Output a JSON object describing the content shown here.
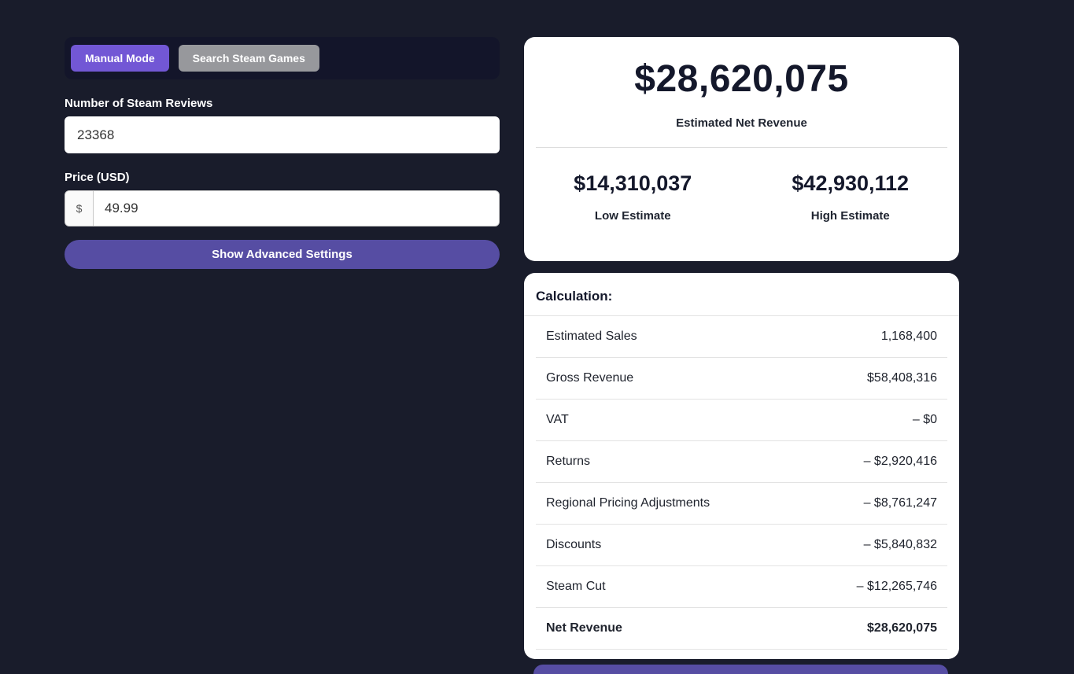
{
  "colors": {
    "background": "#191c2b",
    "accent_purple": "#7257d5",
    "accent_purple_dark": "#564da3",
    "inactive_gray": "#97989c",
    "card": "#ffffff"
  },
  "mode_toggle": {
    "manual_label": "Manual Mode",
    "search_label": "Search Steam Games"
  },
  "form": {
    "reviews_label": "Number of Steam Reviews",
    "reviews_value": "23368",
    "price_label": "Price (USD)",
    "currency_symbol": "$",
    "price_value": "49.99",
    "advanced_button_label": "Show Advanced Settings"
  },
  "summary": {
    "net_revenue": "$28,620,075",
    "net_revenue_label": "Estimated Net Revenue",
    "low_estimate_value": "$14,310,037",
    "low_estimate_label": "Low Estimate",
    "high_estimate_value": "$42,930,112",
    "high_estimate_label": "High Estimate"
  },
  "calculation": {
    "title": "Calculation:",
    "rows": [
      {
        "label": "Estimated Sales",
        "value": "1,168,400",
        "bold": false
      },
      {
        "label": "Gross Revenue",
        "value": "$58,408,316",
        "bold": false
      },
      {
        "label": "VAT",
        "value": "– $0",
        "bold": false
      },
      {
        "label": "Returns",
        "value": "– $2,920,416",
        "bold": false
      },
      {
        "label": "Regional Pricing Adjustments",
        "value": "– $8,761,247",
        "bold": false
      },
      {
        "label": "Discounts",
        "value": "– $5,840,832",
        "bold": false
      },
      {
        "label": "Steam Cut",
        "value": "– $12,265,746",
        "bold": false
      },
      {
        "label": "Net Revenue",
        "value": "$28,620,075",
        "bold": true
      }
    ]
  }
}
